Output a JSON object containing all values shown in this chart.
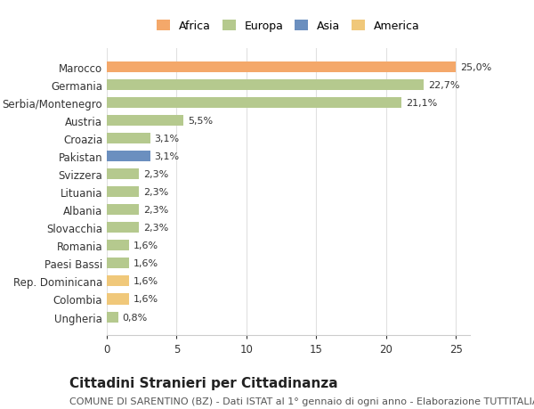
{
  "categories": [
    "Ungheria",
    "Colombia",
    "Rep. Dominicana",
    "Paesi Bassi",
    "Romania",
    "Slovacchia",
    "Albania",
    "Lituania",
    "Svizzera",
    "Pakistan",
    "Croazia",
    "Austria",
    "Serbia/Montenegro",
    "Germania",
    "Marocco"
  ],
  "values": [
    0.8,
    1.6,
    1.6,
    1.6,
    1.6,
    2.3,
    2.3,
    2.3,
    2.3,
    3.1,
    3.1,
    5.5,
    21.1,
    22.7,
    25.0
  ],
  "labels": [
    "0,8%",
    "1,6%",
    "1,6%",
    "1,6%",
    "1,6%",
    "2,3%",
    "2,3%",
    "2,3%",
    "2,3%",
    "3,1%",
    "3,1%",
    "5,5%",
    "21,1%",
    "22,7%",
    "25,0%"
  ],
  "colors": [
    "#b5c98e",
    "#f0c87a",
    "#f0c87a",
    "#b5c98e",
    "#b5c98e",
    "#b5c98e",
    "#b5c98e",
    "#b5c98e",
    "#b5c98e",
    "#6b8fbf",
    "#b5c98e",
    "#b5c98e",
    "#b5c98e",
    "#b5c98e",
    "#f4a86a"
  ],
  "legend_labels": [
    "Africa",
    "Europa",
    "Asia",
    "America"
  ],
  "legend_colors": [
    "#f4a86a",
    "#b5c98e",
    "#6b8fbf",
    "#f0c87a"
  ],
  "title": "Cittadini Stranieri per Cittadinanza",
  "subtitle": "COMUNE DI SARENTINO (BZ) - Dati ISTAT al 1° gennaio di ogni anno - Elaborazione TUTTITALIA.IT",
  "xlim": [
    0,
    26
  ],
  "xticks": [
    0,
    5,
    10,
    15,
    20,
    25
  ],
  "background_color": "#ffffff",
  "grid_color": "#e0e0e0",
  "bar_height": 0.6,
  "title_fontsize": 11,
  "subtitle_fontsize": 8,
  "label_fontsize": 8,
  "tick_fontsize": 8.5
}
